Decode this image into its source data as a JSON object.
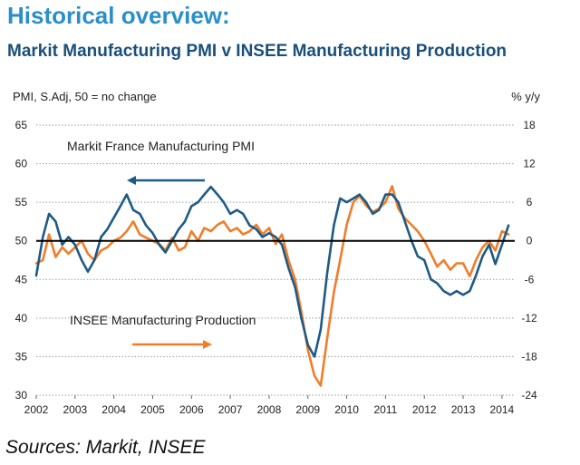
{
  "header": {
    "title": "Historical overview:",
    "subtitle": "Markit Manufacturing PMI v INSEE Manufacturing Production"
  },
  "footer": {
    "source": "Sources: Markit, INSEE"
  },
  "colors": {
    "pmi": "#1f5a85",
    "insee": "#f07d2a",
    "zero_line": "#000000",
    "grid": "#9a9a9a"
  },
  "chart_data": {
    "type": "line",
    "title": "Markit Manufacturing PMI v INSEE Manufacturing Production",
    "left_axis_label": "PMI, S.Adj, 50 = no change",
    "right_axis_label": "% y/y",
    "left_ylim": [
      30,
      65
    ],
    "right_ylim": [
      -24,
      18
    ],
    "left_ticks": [
      "65",
      "60",
      "55",
      "50",
      "45",
      "40",
      "35",
      "30"
    ],
    "right_ticks": [
      "18",
      "12",
      "6",
      "0",
      "-6",
      "-12",
      "-18",
      "-24"
    ],
    "x_ticks": [
      "2002",
      "2003",
      "2004",
      "2005",
      "2006",
      "2007",
      "2008",
      "2009",
      "2010",
      "2011",
      "2012",
      "2013",
      "2014"
    ],
    "xlim": [
      2002,
      2014.33
    ],
    "grid": "horizontal dotted",
    "reference_line": {
      "axis": "left",
      "value": 50
    },
    "annotations": [
      {
        "text": "Markit France Manufacturing PMI",
        "arrow": "left"
      },
      {
        "text": "INSEE Manufacturing Production",
        "arrow": "right"
      }
    ],
    "series": [
      {
        "name": "Markit France Manufacturing PMI",
        "axis": "left",
        "x": [
          2002.0,
          2002.17,
          2002.33,
          2002.5,
          2002.67,
          2002.83,
          2003.0,
          2003.17,
          2003.33,
          2003.5,
          2003.67,
          2003.83,
          2004.0,
          2004.17,
          2004.33,
          2004.5,
          2004.67,
          2004.83,
          2005.0,
          2005.17,
          2005.33,
          2005.5,
          2005.67,
          2005.83,
          2006.0,
          2006.17,
          2006.33,
          2006.5,
          2006.67,
          2006.83,
          2007.0,
          2007.17,
          2007.33,
          2007.5,
          2007.67,
          2007.83,
          2008.0,
          2008.17,
          2008.33,
          2008.5,
          2008.67,
          2008.83,
          2009.0,
          2009.17,
          2009.33,
          2009.5,
          2009.67,
          2009.83,
          2010.0,
          2010.17,
          2010.33,
          2010.5,
          2010.67,
          2010.83,
          2011.0,
          2011.17,
          2011.33,
          2011.5,
          2011.67,
          2011.83,
          2012.0,
          2012.17,
          2012.33,
          2012.5,
          2012.67,
          2012.83,
          2013.0,
          2013.17,
          2013.33,
          2013.5,
          2013.67,
          2013.83,
          2014.0,
          2014.17
        ],
        "values": [
          45.5,
          50.5,
          53.5,
          52.5,
          49.5,
          50.5,
          49.5,
          47.5,
          46.0,
          47.5,
          50.5,
          51.5,
          53.0,
          54.5,
          56.0,
          54.0,
          53.5,
          52.0,
          51.0,
          49.5,
          48.5,
          50.0,
          51.5,
          52.5,
          54.5,
          55.0,
          56.0,
          57.0,
          56.0,
          55.0,
          53.5,
          54.0,
          53.5,
          52.0,
          51.5,
          50.5,
          51.0,
          50.5,
          49.5,
          46.5,
          44.0,
          40.0,
          36.5,
          35.0,
          38.5,
          46.0,
          52.0,
          55.5,
          55.0,
          55.5,
          56.0,
          55.0,
          53.5,
          54.0,
          56.0,
          56.0,
          55.0,
          52.5,
          50.0,
          48.0,
          47.5,
          45.0,
          44.5,
          43.5,
          43.0,
          43.5,
          43.0,
          43.5,
          45.5,
          48.0,
          49.5,
          47.0,
          49.5,
          52.0
        ]
      },
      {
        "name": "INSEE Manufacturing Production",
        "axis": "right",
        "x": [
          2002.0,
          2002.17,
          2002.33,
          2002.5,
          2002.67,
          2002.83,
          2003.0,
          2003.17,
          2003.33,
          2003.5,
          2003.67,
          2003.83,
          2004.0,
          2004.17,
          2004.33,
          2004.5,
          2004.67,
          2004.83,
          2005.0,
          2005.17,
          2005.33,
          2005.5,
          2005.67,
          2005.83,
          2006.0,
          2006.17,
          2006.33,
          2006.5,
          2006.67,
          2006.83,
          2007.0,
          2007.17,
          2007.33,
          2007.5,
          2007.67,
          2007.83,
          2008.0,
          2008.17,
          2008.33,
          2008.5,
          2008.67,
          2008.83,
          2009.0,
          2009.17,
          2009.33,
          2009.5,
          2009.67,
          2009.83,
          2010.0,
          2010.17,
          2010.33,
          2010.5,
          2010.67,
          2010.83,
          2011.0,
          2011.17,
          2011.33,
          2011.5,
          2011.67,
          2011.83,
          2012.0,
          2012.17,
          2012.33,
          2012.5,
          2012.67,
          2012.83,
          2013.0,
          2013.17,
          2013.33,
          2013.5,
          2013.67,
          2013.83,
          2014.0,
          2014.17
        ],
        "values": [
          -3.5,
          -3.0,
          1.0,
          -2.5,
          -1.0,
          -2.0,
          -1.0,
          0.0,
          -2.0,
          -3.0,
          -1.5,
          -1.0,
          0.0,
          0.5,
          1.5,
          3.0,
          1.0,
          0.5,
          0.0,
          -0.5,
          -1.5,
          0.5,
          -1.5,
          -1.0,
          1.5,
          0.0,
          2.0,
          1.5,
          2.5,
          3.0,
          1.5,
          2.0,
          1.0,
          1.5,
          2.5,
          1.0,
          2.0,
          -0.5,
          1.0,
          -3.0,
          -6.0,
          -11.0,
          -17.0,
          -21.0,
          -22.5,
          -15.0,
          -8.0,
          -3.0,
          2.5,
          6.0,
          7.0,
          5.5,
          4.5,
          5.0,
          6.0,
          8.5,
          5.0,
          3.5,
          2.5,
          1.5,
          0.0,
          -2.0,
          -4.0,
          -3.0,
          -4.5,
          -3.5,
          -3.5,
          -5.5,
          -3.0,
          -1.0,
          0.0,
          -1.5,
          1.5,
          1.0
        ]
      }
    ]
  }
}
